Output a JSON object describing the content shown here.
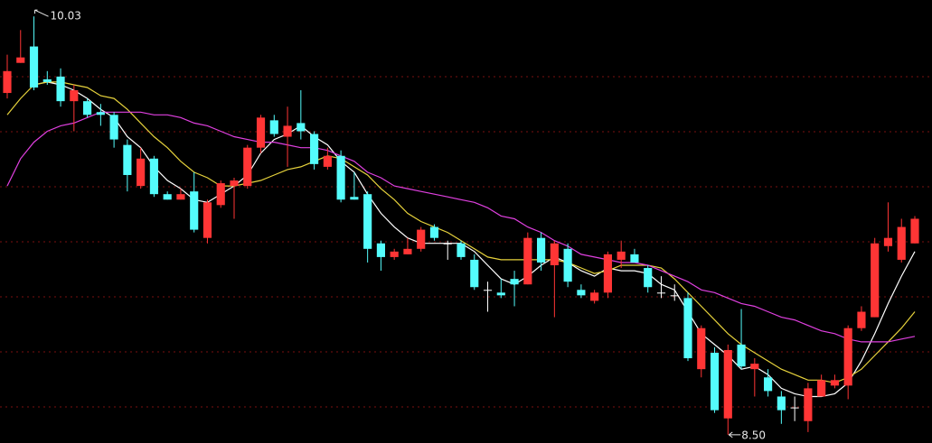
{
  "chart_data": {
    "type": "candlestick",
    "ylim": [
      8.47,
      10.09
    ],
    "up_color": "#ff3535",
    "down_color": "#54fcfc",
    "flat_color": "#ffffff",
    "open": [
      9.75,
      9.86,
      9.92,
      9.8,
      9.81,
      9.72,
      9.72,
      9.68,
      9.67,
      9.56,
      9.41,
      9.51,
      9.38,
      9.36,
      9.39,
      9.22,
      9.34,
      9.41,
      9.41,
      9.55,
      9.65,
      9.59,
      9.64,
      9.6,
      9.48,
      9.52,
      9.37,
      9.38,
      9.2,
      9.15,
      9.16,
      9.18,
      9.26,
      9.2,
      9.2,
      9.14,
      9.03,
      9.02,
      9.07,
      9.05,
      9.22,
      9.12,
      9.18,
      9.03,
      8.99,
      9.02,
      9.14,
      9.16,
      9.11,
      9.02,
      9.01,
      9.0,
      8.74,
      8.8,
      8.56,
      8.83,
      8.74,
      8.71,
      8.64,
      8.6,
      8.55,
      8.64,
      8.68,
      8.68,
      8.89,
      8.93,
      9.19,
      9.14,
      9.2
    ],
    "high": [
      9.89,
      9.98,
      10.03,
      9.83,
      9.84,
      9.78,
      9.73,
      9.71,
      9.68,
      9.58,
      9.55,
      9.52,
      9.39,
      9.4,
      9.46,
      9.36,
      9.43,
      9.44,
      9.56,
      9.67,
      9.67,
      9.7,
      9.76,
      9.61,
      9.55,
      9.54,
      9.46,
      9.39,
      9.21,
      9.18,
      9.22,
      9.26,
      9.27,
      9.21,
      9.21,
      9.16,
      9.06,
      9.07,
      9.1,
      9.24,
      9.24,
      9.21,
      9.2,
      9.05,
      9.03,
      9.17,
      9.21,
      9.18,
      9.12,
      9.08,
      9.05,
      9.02,
      8.9,
      8.82,
      8.83,
      8.96,
      8.78,
      8.74,
      8.66,
      8.64,
      8.69,
      8.72,
      8.72,
      8.9,
      8.97,
      9.22,
      9.35,
      9.29,
      9.3
    ],
    "low": [
      9.73,
      9.86,
      9.76,
      9.78,
      9.7,
      9.61,
      9.66,
      9.63,
      9.55,
      9.39,
      9.4,
      9.37,
      9.36,
      9.36,
      9.24,
      9.2,
      9.33,
      9.29,
      9.4,
      9.53,
      9.59,
      9.48,
      9.58,
      9.47,
      9.47,
      9.35,
      9.36,
      9.13,
      9.1,
      9.14,
      9.16,
      9.17,
      9.21,
      9.14,
      9.14,
      9.03,
      8.95,
      9.0,
      8.97,
      9.05,
      9.1,
      8.93,
      9.04,
      9.0,
      8.98,
      9.0,
      9.11,
      9.13,
      9.02,
      9.0,
      8.99,
      8.77,
      8.71,
      8.58,
      8.5,
      8.74,
      8.64,
      8.64,
      8.54,
      8.55,
      8.51,
      8.64,
      8.67,
      8.63,
      8.88,
      8.93,
      9.17,
      9.13,
      9.2
    ],
    "close": [
      9.83,
      9.88,
      9.77,
      9.79,
      9.72,
      9.76,
      9.67,
      9.67,
      9.58,
      9.45,
      9.51,
      9.38,
      9.36,
      9.38,
      9.25,
      9.35,
      9.42,
      9.43,
      9.55,
      9.66,
      9.6,
      9.63,
      9.61,
      9.49,
      9.52,
      9.36,
      9.36,
      9.18,
      9.15,
      9.17,
      9.18,
      9.25,
      9.22,
      9.2,
      9.15,
      9.04,
      9.03,
      9.01,
      9.05,
      9.22,
      9.13,
      9.2,
      9.06,
      9.01,
      9.02,
      9.16,
      9.17,
      9.13,
      9.04,
      9.02,
      9.01,
      8.78,
      8.89,
      8.59,
      8.81,
      8.75,
      8.76,
      8.66,
      8.59,
      8.6,
      8.67,
      8.7,
      8.7,
      8.89,
      8.95,
      9.2,
      9.22,
      9.26,
      9.29
    ],
    "series": [
      {
        "color": "#ffffff",
        "values": [
          null,
          null,
          9.78,
          9.79,
          9.78,
          9.76,
          9.73,
          9.69,
          9.66,
          9.59,
          9.55,
          9.48,
          9.43,
          9.4,
          9.36,
          9.35,
          9.38,
          9.41,
          9.45,
          9.53,
          9.58,
          9.6,
          9.63,
          9.59,
          9.56,
          9.5,
          9.46,
          9.38,
          9.31,
          9.26,
          9.22,
          9.2,
          9.2,
          9.2,
          9.2,
          9.17,
          9.12,
          9.07,
          9.05,
          9.08,
          9.12,
          9.15,
          9.13,
          9.1,
          9.08,
          9.11,
          9.1,
          9.1,
          9.09,
          9.05,
          9.03,
          8.95,
          8.87,
          8.83,
          8.79,
          8.74,
          8.75,
          8.72,
          8.67,
          8.65,
          8.64,
          8.64,
          8.65,
          8.69,
          8.77,
          8.87,
          8.98,
          9.08,
          9.17
        ]
      },
      {
        "color": "#e6d23c",
        "values": [
          9.67,
          9.73,
          9.78,
          9.79,
          9.79,
          9.78,
          9.77,
          9.74,
          9.73,
          9.69,
          9.64,
          9.59,
          9.55,
          9.5,
          9.46,
          9.44,
          9.41,
          9.41,
          9.42,
          9.43,
          9.45,
          9.47,
          9.48,
          9.5,
          9.52,
          9.51,
          9.48,
          9.45,
          9.4,
          9.36,
          9.31,
          9.28,
          9.26,
          9.24,
          9.21,
          9.18,
          9.15,
          9.14,
          9.14,
          9.14,
          9.14,
          9.14,
          9.13,
          9.11,
          9.09,
          9.1,
          9.12,
          9.12,
          9.12,
          9.11,
          9.07,
          9.02,
          8.97,
          8.92,
          8.87,
          8.83,
          8.8,
          8.77,
          8.74,
          8.72,
          8.7,
          8.7,
          8.69,
          8.71,
          8.74,
          8.79,
          8.84,
          8.89,
          8.95
        ]
      },
      {
        "color": "#e040e0",
        "values": [
          9.41,
          9.51,
          9.57,
          9.61,
          9.63,
          9.64,
          9.66,
          9.68,
          9.68,
          9.68,
          9.68,
          9.67,
          9.67,
          9.66,
          9.64,
          9.63,
          9.61,
          9.59,
          9.58,
          9.57,
          9.57,
          9.56,
          9.55,
          9.55,
          9.54,
          9.52,
          9.5,
          9.46,
          9.44,
          9.41,
          9.4,
          9.39,
          9.38,
          9.37,
          9.36,
          9.35,
          9.33,
          9.3,
          9.29,
          9.26,
          9.24,
          9.21,
          9.19,
          9.16,
          9.15,
          9.14,
          9.13,
          9.13,
          9.12,
          9.1,
          9.08,
          9.06,
          9.03,
          9.02,
          9.0,
          8.98,
          8.97,
          8.95,
          8.93,
          8.92,
          8.9,
          8.88,
          8.87,
          8.85,
          8.84,
          8.84,
          8.84,
          8.85,
          8.86
        ]
      }
    ],
    "annotations": [
      {
        "value": 10.03,
        "label": "10.03"
      },
      {
        "value": 8.5,
        "label": "8.50"
      }
    ]
  }
}
